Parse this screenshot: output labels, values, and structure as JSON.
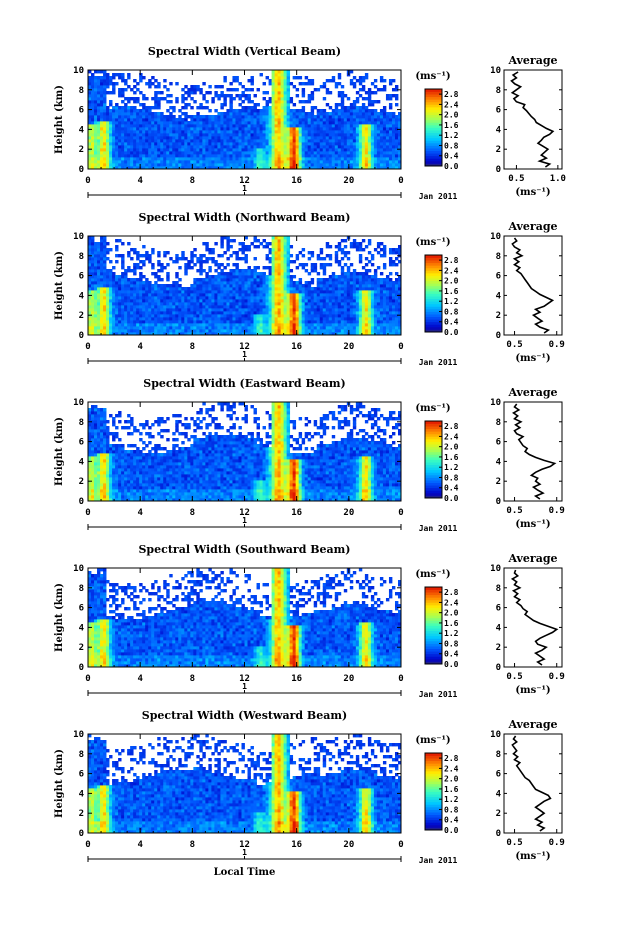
{
  "chart_data": [
    {
      "type": "heatmap",
      "title": "Spectral Width (Vertical Beam)",
      "ylabel": "Height (km)",
      "xlabel": "",
      "x_ticks": [
        "0",
        "4",
        "8",
        "12",
        "16",
        "20",
        "0"
      ],
      "y_ticks": [
        "0",
        "2",
        "4",
        "6",
        "8",
        "10"
      ],
      "xlim": [
        0,
        24
      ],
      "ylim": [
        0,
        10
      ],
      "date_label": "Jan 2011",
      "day_marker": "1",
      "colorbar": {
        "unit": "(ms⁻¹)",
        "ticks": [
          "0.0",
          "0.4",
          "0.8",
          "1.2",
          "1.6",
          "2.0",
          "2.4",
          "2.8"
        ],
        "range": [
          0,
          3.0
        ]
      },
      "profile": {
        "title": "Average",
        "xlabel": "(ms⁻¹)",
        "x_ticks": [
          "0.5",
          "1.0"
        ],
        "xlim": [
          0.35,
          1.05
        ],
        "y_ticks": [
          "0",
          "2",
          "4",
          "6",
          "8",
          "10"
        ],
        "heights": [
          0.2,
          0.5,
          0.8,
          1.1,
          1.4,
          1.7,
          2.0,
          2.3,
          2.6,
          2.9,
          3.2,
          3.5,
          3.8,
          4.1,
          4.4,
          4.7,
          5.0,
          5.3,
          5.6,
          5.9,
          6.2,
          6.5,
          6.8,
          7.1,
          7.4,
          7.7,
          8.0,
          8.3,
          8.6,
          8.9,
          9.2,
          9.5,
          9.8
        ],
        "values": [
          0.85,
          0.9,
          0.78,
          0.86,
          0.8,
          0.84,
          0.88,
          0.82,
          0.76,
          0.8,
          0.83,
          0.9,
          0.94,
          0.86,
          0.8,
          0.74,
          0.72,
          0.68,
          0.65,
          0.62,
          0.58,
          0.6,
          0.5,
          0.47,
          0.52,
          0.45,
          0.5,
          0.55,
          0.48,
          0.44,
          0.5,
          0.46,
          0.52
        ]
      }
    },
    {
      "type": "heatmap",
      "title": "Spectral Width (Northward Beam)",
      "ylabel": "Height (km)",
      "xlabel": "",
      "x_ticks": [
        "0",
        "4",
        "8",
        "12",
        "16",
        "20",
        "0"
      ],
      "y_ticks": [
        "0",
        "2",
        "4",
        "6",
        "8",
        "10"
      ],
      "xlim": [
        0,
        24
      ],
      "ylim": [
        0,
        10
      ],
      "date_label": "Jan 2011",
      "day_marker": "1",
      "colorbar": {
        "unit": "(ms⁻¹)",
        "ticks": [
          "0.0",
          "0.4",
          "0.8",
          "1.2",
          "1.6",
          "2.0",
          "2.4",
          "2.8"
        ],
        "range": [
          0,
          3.0
        ]
      },
      "profile": {
        "title": "Average",
        "xlabel": "(ms⁻¹)",
        "x_ticks": [
          "0.5",
          "0.9"
        ],
        "xlim": [
          0.4,
          0.95
        ],
        "y_ticks": [
          "0",
          "2",
          "4",
          "6",
          "8",
          "10"
        ],
        "heights": [
          0.2,
          0.5,
          0.8,
          1.1,
          1.4,
          1.7,
          2.0,
          2.3,
          2.6,
          2.9,
          3.2,
          3.5,
          3.8,
          4.1,
          4.4,
          4.7,
          5.0,
          5.3,
          5.6,
          5.9,
          6.2,
          6.5,
          6.8,
          7.1,
          7.4,
          7.7,
          8.0,
          8.3,
          8.6,
          8.9,
          9.2,
          9.5,
          9.8
        ],
        "values": [
          0.78,
          0.82,
          0.74,
          0.7,
          0.76,
          0.72,
          0.68,
          0.74,
          0.7,
          0.78,
          0.82,
          0.86,
          0.8,
          0.74,
          0.7,
          0.66,
          0.64,
          0.62,
          0.6,
          0.58,
          0.56,
          0.52,
          0.55,
          0.5,
          0.54,
          0.5,
          0.57,
          0.52,
          0.55,
          0.5,
          0.48,
          0.52,
          0.5
        ]
      }
    },
    {
      "type": "heatmap",
      "title": "Spectral Width (Eastward Beam)",
      "ylabel": "Height (km)",
      "xlabel": "",
      "x_ticks": [
        "0",
        "4",
        "8",
        "12",
        "16",
        "20",
        "0"
      ],
      "y_ticks": [
        "0",
        "2",
        "4",
        "6",
        "8",
        "10"
      ],
      "xlim": [
        0,
        24
      ],
      "ylim": [
        0,
        10
      ],
      "date_label": "Jan 2011",
      "day_marker": "1",
      "colorbar": {
        "unit": "(ms⁻¹)",
        "ticks": [
          "0.0",
          "0.4",
          "0.8",
          "1.2",
          "1.6",
          "2.0",
          "2.4",
          "2.8"
        ],
        "range": [
          0,
          3.0
        ]
      },
      "profile": {
        "title": "Average",
        "xlabel": "(ms⁻¹)",
        "x_ticks": [
          "0.5",
          "0.9"
        ],
        "xlim": [
          0.4,
          0.95
        ],
        "y_ticks": [
          "0",
          "2",
          "4",
          "6",
          "8",
          "10"
        ],
        "heights": [
          0.2,
          0.5,
          0.8,
          1.1,
          1.4,
          1.7,
          2.0,
          2.3,
          2.6,
          2.9,
          3.2,
          3.5,
          3.8,
          4.1,
          4.4,
          4.7,
          5.0,
          5.3,
          5.6,
          5.9,
          6.2,
          6.5,
          6.8,
          7.1,
          7.4,
          7.7,
          8.0,
          8.3,
          8.6,
          8.9,
          9.2,
          9.5,
          9.8
        ],
        "values": [
          0.74,
          0.7,
          0.77,
          0.72,
          0.68,
          0.74,
          0.7,
          0.72,
          0.66,
          0.7,
          0.76,
          0.84,
          0.88,
          0.78,
          0.7,
          0.64,
          0.6,
          0.62,
          0.58,
          0.56,
          0.54,
          0.58,
          0.52,
          0.5,
          0.55,
          0.51,
          0.56,
          0.5,
          0.53,
          0.49,
          0.54,
          0.5,
          0.52
        ]
      }
    },
    {
      "type": "heatmap",
      "title": "Spectral Width (Southward Beam)",
      "ylabel": "Height (km)",
      "xlabel": "",
      "x_ticks": [
        "0",
        "4",
        "8",
        "12",
        "16",
        "20",
        "0"
      ],
      "y_ticks": [
        "0",
        "2",
        "4",
        "6",
        "8",
        "10"
      ],
      "xlim": [
        0,
        24
      ],
      "ylim": [
        0,
        10
      ],
      "date_label": "Jan 2011",
      "day_marker": "1",
      "colorbar": {
        "unit": "(ms⁻¹)",
        "ticks": [
          "0.0",
          "0.4",
          "0.8",
          "1.2",
          "1.6",
          "2.0",
          "2.4",
          "2.8"
        ],
        "range": [
          0,
          3.0
        ]
      },
      "profile": {
        "title": "Average",
        "xlabel": "(ms⁻¹)",
        "x_ticks": [
          "0.5",
          "0.9"
        ],
        "xlim": [
          0.4,
          0.95
        ],
        "y_ticks": [
          "0",
          "2",
          "4",
          "6",
          "8",
          "10"
        ],
        "heights": [
          0.2,
          0.5,
          0.8,
          1.1,
          1.4,
          1.7,
          2.0,
          2.3,
          2.6,
          2.9,
          3.2,
          3.5,
          3.8,
          4.1,
          4.4,
          4.7,
          5.0,
          5.3,
          5.6,
          5.9,
          6.2,
          6.5,
          6.8,
          7.1,
          7.4,
          7.7,
          8.0,
          8.3,
          8.6,
          8.9,
          9.2,
          9.5,
          9.8
        ],
        "values": [
          0.76,
          0.72,
          0.78,
          0.74,
          0.7,
          0.76,
          0.8,
          0.72,
          0.7,
          0.74,
          0.8,
          0.86,
          0.9,
          0.82,
          0.74,
          0.68,
          0.64,
          0.6,
          0.62,
          0.58,
          0.56,
          0.52,
          0.55,
          0.5,
          0.53,
          0.49,
          0.55,
          0.5,
          0.52,
          0.48,
          0.53,
          0.5,
          0.51
        ]
      }
    },
    {
      "type": "heatmap",
      "title": "Spectral Width (Westward Beam)",
      "ylabel": "Height (km)",
      "xlabel": "Local Time",
      "x_ticks": [
        "0",
        "4",
        "8",
        "12",
        "16",
        "20",
        "0"
      ],
      "y_ticks": [
        "0",
        "2",
        "4",
        "6",
        "8",
        "10"
      ],
      "xlim": [
        0,
        24
      ],
      "ylim": [
        0,
        10
      ],
      "date_label": "Jan 2011",
      "day_marker": "1",
      "colorbar": {
        "unit": "(ms⁻¹)",
        "ticks": [
          "0.0",
          "0.4",
          "0.8",
          "1.2",
          "1.6",
          "2.0",
          "2.4",
          "2.8"
        ],
        "range": [
          0,
          3.0
        ]
      },
      "profile": {
        "title": "Average",
        "xlabel": "(ms⁻¹)",
        "x_ticks": [
          "0.5",
          "0.9"
        ],
        "xlim": [
          0.4,
          0.95
        ],
        "y_ticks": [
          "0",
          "2",
          "4",
          "6",
          "8",
          "10"
        ],
        "heights": [
          0.2,
          0.5,
          0.8,
          1.1,
          1.4,
          1.7,
          2.0,
          2.3,
          2.6,
          2.9,
          3.2,
          3.5,
          3.8,
          4.1,
          4.4,
          4.7,
          5.0,
          5.3,
          5.6,
          5.9,
          6.2,
          6.5,
          6.8,
          7.1,
          7.4,
          7.7,
          8.0,
          8.3,
          8.6,
          8.9,
          9.2,
          9.5,
          9.8
        ],
        "values": [
          0.74,
          0.78,
          0.72,
          0.76,
          0.7,
          0.74,
          0.78,
          0.74,
          0.7,
          0.74,
          0.78,
          0.84,
          0.82,
          0.76,
          0.7,
          0.68,
          0.66,
          0.64,
          0.6,
          0.58,
          0.56,
          0.54,
          0.52,
          0.55,
          0.5,
          0.53,
          0.49,
          0.52,
          0.5,
          0.48,
          0.52,
          0.49,
          0.51
        ]
      }
    }
  ]
}
